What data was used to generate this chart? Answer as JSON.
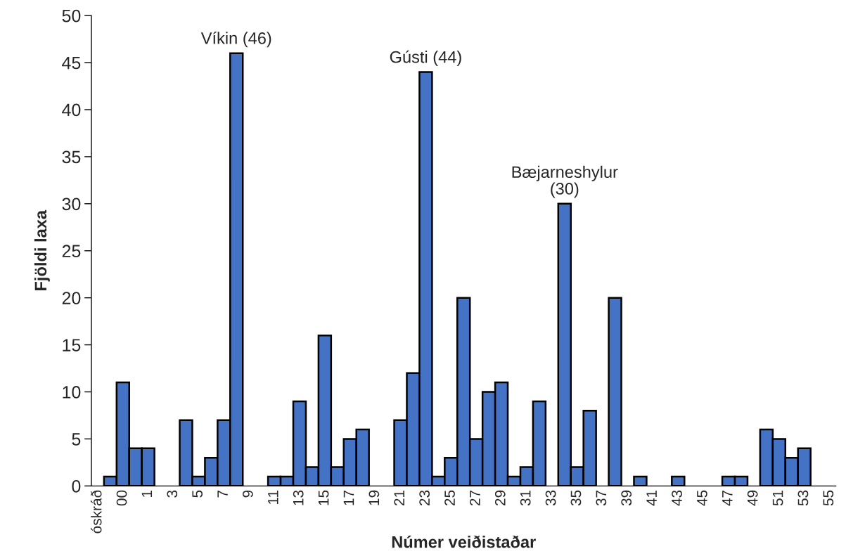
{
  "chart_data": {
    "type": "bar",
    "xlabel": "Númer veiðistaðar",
    "ylabel": "Fjöldi laxa",
    "categories": [
      "óskráð",
      null,
      "00",
      null,
      "1",
      null,
      "3",
      null,
      "5",
      null,
      "7",
      null,
      "9",
      null,
      "11",
      null,
      "13",
      null,
      "15",
      null,
      "17",
      null,
      "19",
      null,
      "21",
      null,
      "23",
      null,
      "25",
      null,
      "27",
      null,
      "29",
      null,
      "31",
      null,
      "33",
      null,
      "35",
      null,
      "37",
      null,
      "39",
      null,
      "41",
      null,
      "43",
      null,
      "45",
      null,
      "47",
      null,
      "49",
      null,
      "51",
      null,
      "53",
      null,
      "55"
    ],
    "values": [
      null,
      1,
      11,
      4,
      4,
      null,
      null,
      7,
      1,
      3,
      7,
      46,
      null,
      null,
      1,
      1,
      9,
      2,
      16,
      2,
      5,
      6,
      null,
      null,
      7,
      12,
      44,
      1,
      3,
      20,
      5,
      10,
      11,
      1,
      2,
      9,
      null,
      30,
      2,
      8,
      null,
      20,
      null,
      1,
      null,
      null,
      1,
      null,
      null,
      null,
      1,
      1,
      null,
      6,
      5,
      3,
      4,
      null,
      null
    ],
    "color": "#4472c4",
    "ylim": [
      0,
      50
    ],
    "yticks": [
      0,
      5,
      10,
      15,
      20,
      25,
      30,
      35,
      40,
      45,
      50
    ],
    "grid": false,
    "legend": false,
    "annotations": [
      {
        "text": "Víkin (46)",
        "y": 46
      },
      {
        "text": "Gústi (44)",
        "y": 44
      },
      {
        "text": "Bæjarneshylur\n(30)",
        "y": 30
      }
    ]
  }
}
